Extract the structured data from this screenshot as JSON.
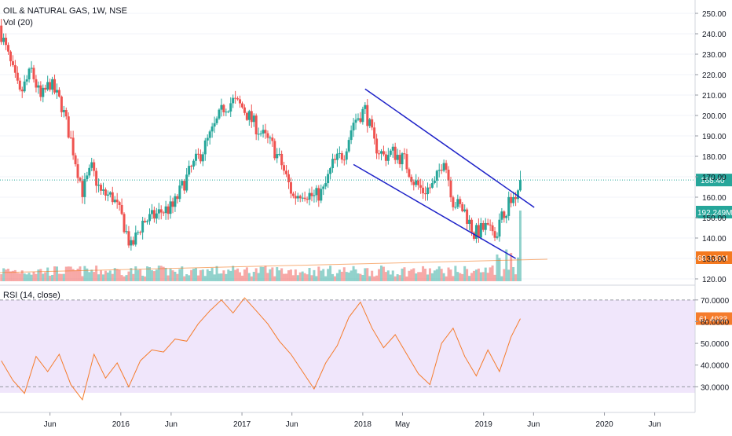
{
  "header": {
    "symbol_line": "OIL & NATURAL GAS, 1W, NSE",
    "volume_label": "Vol (20)",
    "rsi_label": "RSI (14, close)"
  },
  "price_axis": {
    "ticks": [
      "250.00",
      "240.00",
      "230.00",
      "220.00",
      "210.00",
      "200.00",
      "190.00",
      "180.00",
      "170.00",
      "160.00",
      "150.00",
      "140.00",
      "130.00",
      "120.00"
    ],
    "last_price_label": "168.40",
    "volume_label": "192.249M",
    "volume_ma_label": "68.138M"
  },
  "rsi_axis": {
    "ticks": [
      "70.0000",
      "60.0000",
      "50.0000",
      "40.0000",
      "30.0000"
    ],
    "current_label": "61.4033"
  },
  "time_axis": {
    "labels": [
      "Jun",
      "2016",
      "Jun",
      "2017",
      "Jun",
      "2018",
      "May",
      "2019",
      "Jun",
      "2020",
      "Jun"
    ]
  },
  "colors": {
    "up": "#26a69a",
    "down": "#ef5350",
    "trend_channel": "#1e22c8",
    "rsi_line": "#f57c2c",
    "rsi_band": "#f0e6fb",
    "last_price_badge": "#26a69a",
    "vol_ma_badge": "#f4791f",
    "rsi_badge": "#f57c2c"
  },
  "chart_data": {
    "type": "candlestick",
    "timeframe": "1W",
    "ylim": [
      120,
      250
    ],
    "x_range": [
      "2015-01",
      "2020-10"
    ],
    "close_series": [
      {
        "date": "2015-01-05",
        "close": 240
      },
      {
        "date": "2015-02-02",
        "close": 225
      },
      {
        "date": "2015-03-02",
        "close": 210
      },
      {
        "date": "2015-04-06",
        "close": 222
      },
      {
        "date": "2015-05-04",
        "close": 208
      },
      {
        "date": "2015-06-01",
        "close": 216
      },
      {
        "date": "2015-07-06",
        "close": 205
      },
      {
        "date": "2015-08-03",
        "close": 188
      },
      {
        "date": "2015-09-07",
        "close": 163
      },
      {
        "date": "2015-10-05",
        "close": 174
      },
      {
        "date": "2015-11-02",
        "close": 162
      },
      {
        "date": "2015-12-07",
        "close": 160
      },
      {
        "date": "2016-01-04",
        "close": 150
      },
      {
        "date": "2016-02-01",
        "close": 135
      },
      {
        "date": "2016-03-07",
        "close": 148
      },
      {
        "date": "2016-04-04",
        "close": 150
      },
      {
        "date": "2016-05-02",
        "close": 153
      },
      {
        "date": "2016-06-06",
        "close": 155
      },
      {
        "date": "2016-07-04",
        "close": 165
      },
      {
        "date": "2016-08-01",
        "close": 174
      },
      {
        "date": "2016-09-05",
        "close": 183
      },
      {
        "date": "2016-10-03",
        "close": 192
      },
      {
        "date": "2016-11-07",
        "close": 204
      },
      {
        "date": "2016-12-05",
        "close": 207
      },
      {
        "date": "2017-01-02",
        "close": 204
      },
      {
        "date": "2017-02-06",
        "close": 196
      },
      {
        "date": "2017-03-06",
        "close": 190
      },
      {
        "date": "2017-04-03",
        "close": 185
      },
      {
        "date": "2017-05-01",
        "close": 176
      },
      {
        "date": "2017-06-05",
        "close": 160
      },
      {
        "date": "2017-07-03",
        "close": 163
      },
      {
        "date": "2017-08-07",
        "close": 160
      },
      {
        "date": "2017-09-04",
        "close": 163
      },
      {
        "date": "2017-10-02",
        "close": 176
      },
      {
        "date": "2017-11-06",
        "close": 182
      },
      {
        "date": "2017-12-04",
        "close": 197
      },
      {
        "date": "2018-01-08",
        "close": 203
      },
      {
        "date": "2018-02-05",
        "close": 186
      },
      {
        "date": "2018-03-05",
        "close": 180
      },
      {
        "date": "2018-04-02",
        "close": 182
      },
      {
        "date": "2018-05-07",
        "close": 178
      },
      {
        "date": "2018-06-04",
        "close": 168
      },
      {
        "date": "2018-07-02",
        "close": 163
      },
      {
        "date": "2018-08-06",
        "close": 166
      },
      {
        "date": "2018-09-03",
        "close": 180
      },
      {
        "date": "2018-10-01",
        "close": 158
      },
      {
        "date": "2018-11-05",
        "close": 153
      },
      {
        "date": "2018-12-03",
        "close": 142
      },
      {
        "date": "2019-01-07",
        "close": 145
      },
      {
        "date": "2019-02-04",
        "close": 140
      },
      {
        "date": "2019-03-04",
        "close": 153
      },
      {
        "date": "2019-04-01",
        "close": 160
      },
      {
        "date": "2019-04-22",
        "close": 168.4
      }
    ],
    "channel_upper": [
      {
        "date": "2018-01-08",
        "price": 213
      },
      {
        "date": "2019-06-03",
        "price": 155
      }
    ],
    "channel_lower": [
      {
        "date": "2017-12-04",
        "price": 176
      },
      {
        "date": "2019-04-08",
        "price": 130
      }
    ],
    "volume_current": "192.249M",
    "volume_ma": "68.138M",
    "rsi": {
      "length": 14,
      "ylim": [
        20,
        75
      ],
      "bands": [
        30,
        70
      ],
      "current": 61.4033,
      "values": [
        {
          "date": "2015-01-05",
          "value": 42
        },
        {
          "date": "2015-02-09",
          "value": 33
        },
        {
          "date": "2015-03-16",
          "value": 27
        },
        {
          "date": "2015-04-20",
          "value": 44
        },
        {
          "date": "2015-05-25",
          "value": 37
        },
        {
          "date": "2015-06-29",
          "value": 45
        },
        {
          "date": "2015-08-03",
          "value": 31
        },
        {
          "date": "2015-09-07",
          "value": 24
        },
        {
          "date": "2015-10-12",
          "value": 45
        },
        {
          "date": "2015-11-16",
          "value": 34
        },
        {
          "date": "2015-12-21",
          "value": 41
        },
        {
          "date": "2016-01-25",
          "value": 30
        },
        {
          "date": "2016-02-29",
          "value": 42
        },
        {
          "date": "2016-04-04",
          "value": 47
        },
        {
          "date": "2016-05-09",
          "value": 46
        },
        {
          "date": "2016-06-13",
          "value": 52
        },
        {
          "date": "2016-07-18",
          "value": 51
        },
        {
          "date": "2016-08-22",
          "value": 59
        },
        {
          "date": "2016-09-26",
          "value": 65
        },
        {
          "date": "2016-10-31",
          "value": 70
        },
        {
          "date": "2016-12-05",
          "value": 64
        },
        {
          "date": "2017-01-09",
          "value": 71
        },
        {
          "date": "2017-02-13",
          "value": 65
        },
        {
          "date": "2017-03-20",
          "value": 59
        },
        {
          "date": "2017-04-24",
          "value": 51
        },
        {
          "date": "2017-05-29",
          "value": 45
        },
        {
          "date": "2017-07-03",
          "value": 37
        },
        {
          "date": "2017-08-07",
          "value": 29
        },
        {
          "date": "2017-09-11",
          "value": 41
        },
        {
          "date": "2017-10-16",
          "value": 49
        },
        {
          "date": "2017-11-20",
          "value": 62
        },
        {
          "date": "2017-12-25",
          "value": 69
        },
        {
          "date": "2018-01-29",
          "value": 57
        },
        {
          "date": "2018-03-05",
          "value": 48
        },
        {
          "date": "2018-04-09",
          "value": 54
        },
        {
          "date": "2018-05-14",
          "value": 45
        },
        {
          "date": "2018-06-18",
          "value": 36
        },
        {
          "date": "2018-07-23",
          "value": 31
        },
        {
          "date": "2018-08-27",
          "value": 50
        },
        {
          "date": "2018-10-01",
          "value": 57
        },
        {
          "date": "2018-11-05",
          "value": 44
        },
        {
          "date": "2018-12-10",
          "value": 35
        },
        {
          "date": "2019-01-14",
          "value": 47
        },
        {
          "date": "2019-02-18",
          "value": 37
        },
        {
          "date": "2019-03-25",
          "value": 53
        },
        {
          "date": "2019-04-22",
          "value": 61.4
        }
      ]
    }
  }
}
